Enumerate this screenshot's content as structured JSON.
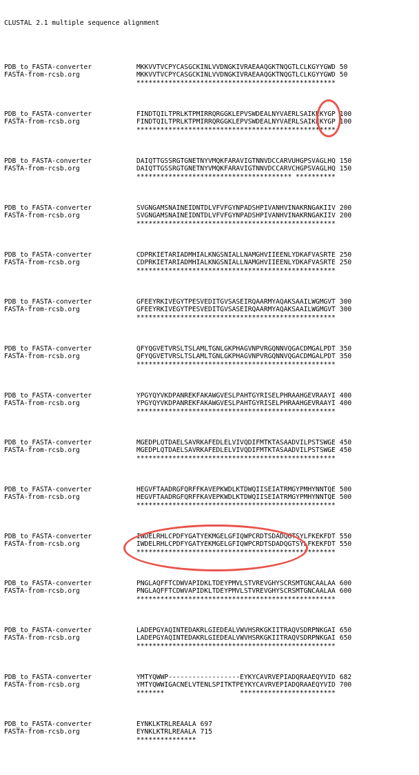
{
  "header": "CLUSTAL 2.1 multiple sequence alignment",
  "annotation_color": "#e8554d",
  "blocks": [
    {
      "a_name": "PDB_to_FASTA-converter",
      "a_seq": "MKKVVTVCPYCASGCKINLVVDNGKIVRAEAAQGKTNQGTLCLKGYYGWD",
      "a_num": "50",
      "b_name": "FASTA-from-rcsb.org",
      "b_seq": "MKKVVTVCPYCASGCKINLVVDNGKIVRAEAAQGKTNQGTLCLKGYYGWD",
      "b_num": "50",
      "cons": "**************************************************"
    },
    {
      "a_name": "PDB_to_FASTA-converter",
      "a_seq": "FINDTQILTPRLKTPMIRRQRGGKLEPVSWDEALNYVAERLSAIKEKYGP",
      "a_num": "100",
      "b_name": "FASTA-from-rcsb.org",
      "b_seq": "FINDTQILTPRLKTPMIRRQRGGKLEPVSWDEALNYVAERLSAIKEKYGP",
      "b_num": "100",
      "cons": "**************************************************"
    },
    {
      "a_name": "PDB_to_FASTA-converter",
      "a_seq": "DAIQTTGSSRGTGNETNYVMQKFARAVIGTNNVDCCARVUHGPSVAGLHQ",
      "a_num": "150",
      "b_name": "FASTA-from-rcsb.org",
      "b_seq": "DAIQTTGSSRGTGNETNYVMQKFARAVIGTNNVDCCARVCHGPSVAGLHQ",
      "b_num": "150",
      "cons": "*************************************** **********"
    },
    {
      "a_name": "PDB_to_FASTA-converter",
      "a_seq": "SVGNGAMSNAINEIDNTDLVFVFGYNPADSHPIVANHVINAKRNGAKIIV",
      "a_num": "200",
      "b_name": "FASTA-from-rcsb.org",
      "b_seq": "SVGNGAMSNAINEIDNTDLVFVFGYNPADSHPIVANHVINAKRNGAKIIV",
      "b_num": "200",
      "cons": "**************************************************"
    },
    {
      "a_name": "PDB_to_FASTA-converter",
      "a_seq": "CDPRKIETARIADMHIALKNGSNIALLNAMGHVIIEENLYDKAFVASRTE",
      "a_num": "250",
      "b_name": "FASTA-from-rcsb.org",
      "b_seq": "CDPRKIETARIADMHIALKNGSNIALLNAMGHVIIEENLYDKAFVASRTE",
      "b_num": "250",
      "cons": "**************************************************"
    },
    {
      "a_name": "PDB_to_FASTA-converter",
      "a_seq": "GFEEYRKIVEGYTPESVEDITGVSASEIRQAARMYAQAKSAAILWGMGVT",
      "a_num": "300",
      "b_name": "FASTA-from-rcsb.org",
      "b_seq": "GFEEYRKIVEGYTPESVEDITGVSASEIRQAARMYAQAKSAAILWGMGVT",
      "b_num": "300",
      "cons": "**************************************************"
    },
    {
      "a_name": "PDB_to_FASTA-converter",
      "a_seq": "QFYQGVETVRSLTSLAMLTGNLGKPHAGVNPVRGQNNVQGACDMGALPDT",
      "a_num": "350",
      "b_name": "FASTA-from-rcsb.org",
      "b_seq": "QFYQGVETVRSLTSLAMLTGNLGKPHAGVNPVRGQNNVQGACDMGALPDT",
      "b_num": "350",
      "cons": "**************************************************"
    },
    {
      "a_name": "PDB_to_FASTA-converter",
      "a_seq": "YPGYQYVKDPANREKFAKAWGVESLPAHTGYRISELPHRAAHGEVRAAYI",
      "a_num": "400",
      "b_name": "FASTA-from-rcsb.org",
      "b_seq": "YPGYQYVKDPANREKFAKAWGVESLPAHTGYRISELPHRAAHGEVRAAYI",
      "b_num": "400",
      "cons": "**************************************************"
    },
    {
      "a_name": "PDB_to_FASTA-converter",
      "a_seq": "MGEDPLQTDAELSAVRKAFEDLELVIVQDIFMTKTASAADVILPSTSWGE",
      "a_num": "450",
      "b_name": "FASTA-from-rcsb.org",
      "b_seq": "MGEDPLQTDAELSAVRKAFEDLELVIVQDIFMTKTASAADVILPSTSWGE",
      "b_num": "450",
      "cons": "**************************************************"
    },
    {
      "a_name": "PDB_to_FASTA-converter",
      "a_seq": "HEGVFTAADRGFQRFFKAVEPKWDLKTDWQIISEIATRMGYPMHYNNTQE",
      "a_num": "500",
      "b_name": "FASTA-from-rcsb.org",
      "b_seq": "HEGVFTAADRGFQRFFKAVEPKWDLKTDWQIISEIATRMGYPMHYNNTQE",
      "b_num": "500",
      "cons": "**************************************************"
    },
    {
      "a_name": "PDB_to_FASTA-converter",
      "a_seq": "IWDELRHLCPDFYGATYEKMGELGFIQWPCRDTSDADQGTSYLFKEKFDT",
      "a_num": "550",
      "b_name": "FASTA-from-rcsb.org",
      "b_seq": "IWDELRHLCPDFYGATYEKMGELGFIQWPCRDTSDADQGTSYLFKEKFDT",
      "b_num": "550",
      "cons": "**************************************************"
    },
    {
      "a_name": "PDB_to_FASTA-converter",
      "a_seq": "PNGLAQFFTCDWVAPIDKLTDEYPMVLSTVREVGHYSCRSMTGNCAALAA",
      "a_num": "600",
      "b_name": "FASTA-from-rcsb.org",
      "b_seq": "PNGLAQFFTCDWVAPIDKLTDEYPMVLSTVREVGHYSCRSMTGNCAALAA",
      "b_num": "600",
      "cons": "**************************************************"
    },
    {
      "a_name": "PDB_to_FASTA-converter",
      "a_seq": "LADEPGYAQINTEDAKRLGIEDEALVWVHSRKGKIITRAQVSDRPNKGAI",
      "a_num": "650",
      "b_name": "FASTA-from-rcsb.org",
      "b_seq": "LADEPGYAQINTEDAKRLGIEDEALVWVHSRKGKIITRAQVSDRPNKGAI",
      "b_num": "650",
      "cons": "**************************************************"
    },
    {
      "a_name": "PDB_to_FASTA-converter",
      "a_seq": "YMTYQWWP------------------EYKYCAVRVEPIADQRAAEQYVID",
      "a_num": "682",
      "b_name": "FASTA-from-rcsb.org",
      "b_seq": "YMTYQWWIGACNELVTENLSPITKTPEYKYCAVRVEPIADQRAAEQYVID",
      "b_num": "700",
      "cons": "*******                   ************************"
    },
    {
      "a_name": "PDB_to_FASTA-converter",
      "a_seq": "EYNKLKTRLREAALA",
      "a_num": "697",
      "b_name": "FASTA-from-rcsb.org",
      "b_seq": "EYNKLKTRLREAALA",
      "b_num": "715",
      "cons": "***************"
    }
  ]
}
